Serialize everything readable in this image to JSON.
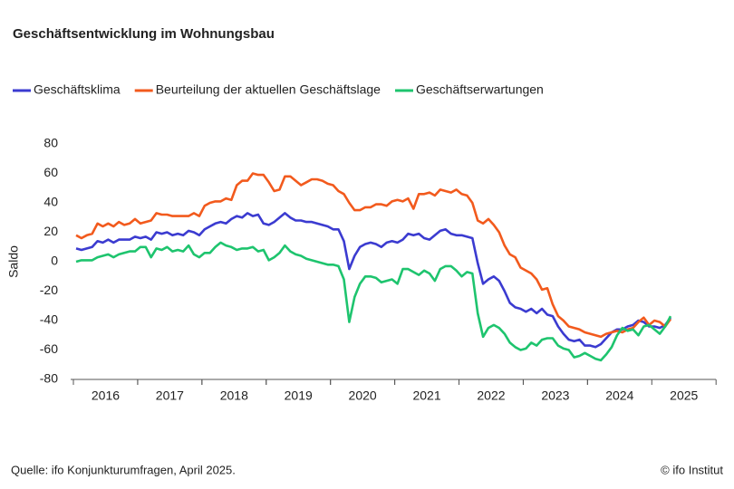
{
  "chart_data": {
    "type": "line",
    "title": "Geschäftsentwicklung im Wohnungsbau",
    "y_label": "Saldo",
    "source": "Quelle: ifo Konjunkturumfragen, April 2025.",
    "copyright": "© ifo Institut",
    "categories": [
      null,
      null,
      null,
      null,
      null,
      null,
      "2016",
      null,
      null,
      null,
      null,
      null,
      null,
      null,
      null,
      null,
      null,
      null,
      "2017",
      null,
      null,
      null,
      null,
      null,
      null,
      null,
      null,
      null,
      null,
      null,
      "2018",
      null,
      null,
      null,
      null,
      null,
      null,
      null,
      null,
      null,
      null,
      null,
      "2019",
      null,
      null,
      null,
      null,
      null,
      null,
      null,
      null,
      null,
      null,
      null,
      "2020",
      null,
      null,
      null,
      null,
      null,
      null,
      null,
      null,
      null,
      null,
      null,
      "2021",
      null,
      null,
      null,
      null,
      null,
      null,
      null,
      null,
      null,
      null,
      null,
      "2022",
      null,
      null,
      null,
      null,
      null,
      null,
      null,
      null,
      null,
      null,
      null,
      "2023",
      null,
      null,
      null,
      null,
      null,
      null,
      null,
      null,
      null,
      null,
      null,
      "2024",
      null,
      null,
      null,
      null,
      null,
      null,
      null,
      null,
      null
    ],
    "extra_x_labels": [
      "2025"
    ],
    "series": [
      {
        "name": "Geschäftsklima",
        "color": "#3b3bd0",
        "values": [
          9,
          8,
          9,
          10,
          14,
          13,
          15,
          13,
          15,
          15,
          15,
          17,
          16,
          17,
          15,
          20,
          19,
          20,
          18,
          19,
          18,
          21,
          20,
          18,
          22,
          24,
          26,
          27,
          26,
          29,
          31,
          30,
          33,
          31,
          32,
          26,
          25,
          27,
          30,
          33,
          30,
          28,
          28,
          27,
          27,
          26,
          25,
          24,
          22,
          22,
          14,
          -5,
          4,
          10,
          12,
          13,
          12,
          10,
          13,
          14,
          13,
          15,
          19,
          18,
          19,
          16,
          15,
          18,
          21,
          22,
          19,
          18,
          18,
          17,
          16,
          -1,
          -15,
          -12,
          -10,
          -13,
          -20,
          -28,
          -31,
          -32,
          -34,
          -32,
          -35,
          -32,
          -36,
          -37,
          -44,
          -49,
          -53,
          -54,
          -53,
          -57,
          -57,
          -58,
          -56,
          -52,
          -48,
          -46,
          -46,
          -44,
          -43,
          -40,
          -41,
          -44,
          -44,
          -45,
          -43,
          -38
        ]
      },
      {
        "name": "Beurteilung der aktuellen Geschäftslage",
        "color": "#f25a1d",
        "values": [
          18,
          16,
          18,
          19,
          26,
          24,
          26,
          24,
          27,
          25,
          26,
          29,
          26,
          27,
          28,
          33,
          32,
          32,
          31,
          31,
          31,
          31,
          33,
          31,
          38,
          40,
          41,
          41,
          43,
          42,
          52,
          55,
          55,
          60,
          59,
          59,
          54,
          48,
          49,
          58,
          58,
          55,
          52,
          54,
          56,
          56,
          55,
          53,
          52,
          48,
          46,
          40,
          35,
          35,
          37,
          37,
          39,
          39,
          38,
          41,
          42,
          41,
          43,
          36,
          46,
          46,
          47,
          45,
          49,
          48,
          47,
          49,
          46,
          45,
          40,
          28,
          26,
          29,
          25,
          20,
          11,
          5,
          3,
          -4,
          -6,
          -8,
          -12,
          -19,
          -18,
          -29,
          -37,
          -40,
          -44,
          -45,
          -46,
          -48,
          -49,
          -50,
          -51,
          -49,
          -48,
          -47,
          -48,
          -46,
          -45,
          -41,
          -38,
          -43,
          -40,
          -41,
          -44,
          -39
        ]
      },
      {
        "name": "Geschäftserwartungen",
        "color": "#1ec46e",
        "values": [
          0,
          1,
          1,
          1,
          3,
          4,
          5,
          3,
          5,
          6,
          7,
          7,
          10,
          10,
          3,
          9,
          8,
          10,
          7,
          8,
          7,
          11,
          5,
          3,
          6,
          6,
          10,
          13,
          11,
          10,
          8,
          9,
          9,
          10,
          7,
          8,
          1,
          3,
          6,
          11,
          7,
          5,
          4,
          2,
          1,
          0,
          -1,
          -2,
          -2,
          -3,
          -12,
          -41,
          -24,
          -15,
          -10,
          -10,
          -11,
          -14,
          -13,
          -12,
          -15,
          -5,
          -5,
          -7,
          -9,
          -6,
          -8,
          -13,
          -5,
          -3,
          -3,
          -6,
          -10,
          -7,
          -8,
          -35,
          -51,
          -45,
          -43,
          -45,
          -49,
          -55,
          -58,
          -60,
          -59,
          -55,
          -57,
          -53,
          -52,
          -52,
          -57,
          -59,
          -60,
          -65,
          -64,
          -62,
          -64,
          -66,
          -67,
          -63,
          -58,
          -50,
          -45,
          -47,
          -46,
          -50,
          -44,
          -43,
          -46,
          -49,
          -44,
          -37
        ]
      }
    ],
    "ylim": [
      -80,
      80
    ],
    "yticks": [
      -80,
      -60,
      -40,
      -20,
      0,
      20,
      40,
      60,
      80
    ],
    "grid": false
  }
}
